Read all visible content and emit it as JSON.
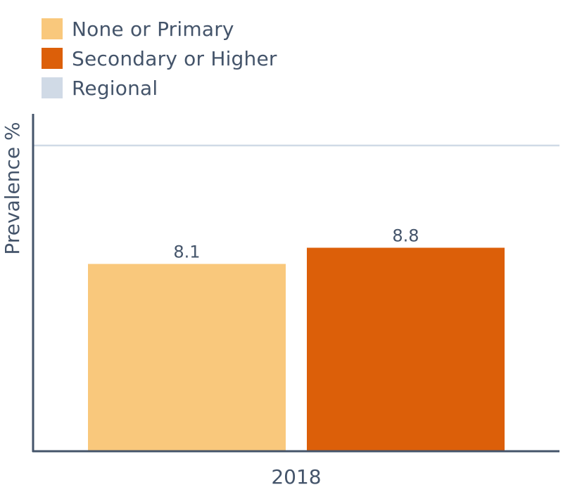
{
  "chart_data": {
    "type": "bar",
    "categories": [
      "2018"
    ],
    "series": [
      {
        "name": "None or Primary",
        "values": [
          8.1
        ],
        "color": "#f9c87c"
      },
      {
        "name": "Secondary or Higher",
        "values": [
          8.8
        ],
        "color": "#dc5f09"
      }
    ],
    "reference_lines": [
      {
        "name": "Regional",
        "color": "#d0dae6"
      }
    ],
    "data_labels": [
      "8.1",
      "8.8"
    ],
    "ylabel": "Prevalence %",
    "xlabel": "",
    "legend": "top-left",
    "grid": false
  }
}
